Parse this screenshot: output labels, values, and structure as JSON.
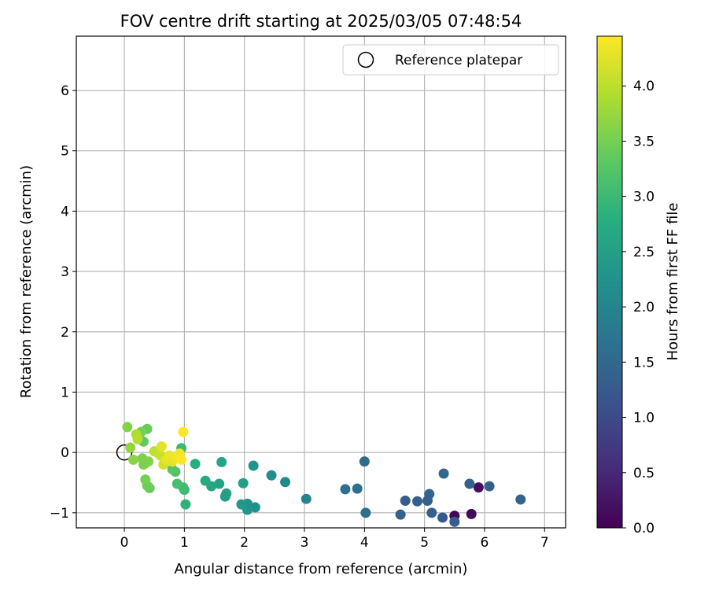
{
  "chart_data": {
    "type": "scatter",
    "title": "FOV centre drift starting at 2025/03/05 07:48:54",
    "xlabel": "Angular distance from reference (arcmin)",
    "ylabel": "Rotation from reference (arcmin)",
    "xlim": [
      -0.8,
      7.35
    ],
    "ylim": [
      -1.25,
      6.9
    ],
    "xticks": [
      0,
      1,
      2,
      3,
      4,
      5,
      6,
      7
    ],
    "yticks": [
      -1,
      0,
      1,
      2,
      3,
      4,
      5,
      6
    ],
    "grid": true,
    "legend": {
      "placement": "top-right",
      "label": "Reference platepar"
    },
    "reference": {
      "x": 0,
      "y": 0
    },
    "colorbar": {
      "label": "Hours from first FF file",
      "colormap": "viridis",
      "range": [
        0,
        4.45
      ],
      "ticks": [
        0.0,
        0.5,
        1.0,
        1.5,
        2.0,
        2.5,
        3.0,
        3.5,
        4.0
      ],
      "tick_labels": [
        "0.0",
        "0.5",
        "1.0",
        "1.5",
        "2.0",
        "2.5",
        "3.0",
        "3.5",
        "4.0"
      ]
    },
    "points": [
      {
        "x": 5.5,
        "y": -1.05,
        "c": 0.05
      },
      {
        "x": 5.78,
        "y": -1.02,
        "c": 0.1
      },
      {
        "x": 5.9,
        "y": -0.58,
        "c": 0.15
      },
      {
        "x": 6.08,
        "y": -0.56,
        "c": 1.35
      },
      {
        "x": 6.6,
        "y": -0.78,
        "c": 1.45
      },
      {
        "x": 5.75,
        "y": -0.52,
        "c": 1.4
      },
      {
        "x": 5.5,
        "y": -1.15,
        "c": 1.3
      },
      {
        "x": 5.3,
        "y": -1.08,
        "c": 1.25
      },
      {
        "x": 5.12,
        "y": -1.0,
        "c": 1.35
      },
      {
        "x": 5.32,
        "y": -0.35,
        "c": 1.5
      },
      {
        "x": 5.08,
        "y": -0.69,
        "c": 1.45
      },
      {
        "x": 5.05,
        "y": -0.8,
        "c": 1.4
      },
      {
        "x": 4.88,
        "y": -0.81,
        "c": 1.35
      },
      {
        "x": 4.68,
        "y": -0.8,
        "c": 1.3
      },
      {
        "x": 4.6,
        "y": -1.03,
        "c": 1.4
      },
      {
        "x": 4.02,
        "y": -1.0,
        "c": 1.6
      },
      {
        "x": 4.0,
        "y": -0.15,
        "c": 1.55
      },
      {
        "x": 3.88,
        "y": -0.6,
        "c": 1.6
      },
      {
        "x": 3.68,
        "y": -0.61,
        "c": 1.65
      },
      {
        "x": 3.03,
        "y": -0.77,
        "c": 2.0
      },
      {
        "x": 2.68,
        "y": -0.49,
        "c": 2.1
      },
      {
        "x": 2.45,
        "y": -0.38,
        "c": 2.15
      },
      {
        "x": 2.15,
        "y": -0.22,
        "c": 2.3
      },
      {
        "x": 2.18,
        "y": -0.91,
        "c": 2.2
      },
      {
        "x": 2.05,
        "y": -0.95,
        "c": 2.3
      },
      {
        "x": 2.05,
        "y": -0.85,
        "c": 2.25
      },
      {
        "x": 1.95,
        "y": -0.86,
        "c": 2.4
      },
      {
        "x": 1.98,
        "y": -0.51,
        "c": 2.5
      },
      {
        "x": 1.68,
        "y": -0.73,
        "c": 2.45
      },
      {
        "x": 1.7,
        "y": -0.68,
        "c": 2.5
      },
      {
        "x": 1.62,
        "y": -0.16,
        "c": 2.6
      },
      {
        "x": 1.58,
        "y": -0.52,
        "c": 2.55
      },
      {
        "x": 1.45,
        "y": -0.56,
        "c": 2.65
      },
      {
        "x": 1.35,
        "y": -0.47,
        "c": 2.7
      },
      {
        "x": 1.18,
        "y": -0.19,
        "c": 2.75
      },
      {
        "x": 1.02,
        "y": -0.86,
        "c": 2.85
      },
      {
        "x": 1.0,
        "y": -0.62,
        "c": 3.0
      },
      {
        "x": 0.98,
        "y": -0.58,
        "c": 3.05
      },
      {
        "x": 0.95,
        "y": 0.07,
        "c": 3.0
      },
      {
        "x": 0.88,
        "y": -0.52,
        "c": 3.1
      },
      {
        "x": 0.85,
        "y": -0.32,
        "c": 3.2
      },
      {
        "x": 0.8,
        "y": -0.28,
        "c": 3.25
      },
      {
        "x": 0.42,
        "y": -0.59,
        "c": 3.4
      },
      {
        "x": 0.38,
        "y": -0.55,
        "c": 3.45
      },
      {
        "x": 0.35,
        "y": -0.45,
        "c": 3.5
      },
      {
        "x": 0.38,
        "y": 0.39,
        "c": 3.4
      },
      {
        "x": 0.32,
        "y": 0.18,
        "c": 3.35
      },
      {
        "x": 0.28,
        "y": 0.34,
        "c": 3.5
      },
      {
        "x": 0.3,
        "y": -0.1,
        "c": 3.55
      },
      {
        "x": 0.35,
        "y": -0.18,
        "c": 3.6
      },
      {
        "x": 0.4,
        "y": -0.15,
        "c": 3.6
      },
      {
        "x": 0.32,
        "y": -0.2,
        "c": 3.55
      },
      {
        "x": 0.05,
        "y": 0.42,
        "c": 3.6
      },
      {
        "x": 0.1,
        "y": 0.08,
        "c": 3.7
      },
      {
        "x": 0.15,
        "y": -0.12,
        "c": 3.65
      },
      {
        "x": 0.2,
        "y": 0.3,
        "c": 3.9
      },
      {
        "x": 0.22,
        "y": 0.22,
        "c": 3.95
      },
      {
        "x": 0.5,
        "y": 0.02,
        "c": 4.0
      },
      {
        "x": 0.55,
        "y": 0.0,
        "c": 4.05
      },
      {
        "x": 0.6,
        "y": -0.05,
        "c": 4.1
      },
      {
        "x": 0.65,
        "y": -0.2,
        "c": 4.15
      },
      {
        "x": 0.62,
        "y": 0.1,
        "c": 4.25
      },
      {
        "x": 0.7,
        "y": -0.12,
        "c": 4.3
      },
      {
        "x": 0.75,
        "y": -0.05,
        "c": 4.35
      },
      {
        "x": 0.8,
        "y": -0.15,
        "c": 4.3
      },
      {
        "x": 0.85,
        "y": -0.1,
        "c": 4.35
      },
      {
        "x": 0.9,
        "y": -0.07,
        "c": 4.4
      },
      {
        "x": 0.92,
        "y": -0.02,
        "c": 4.38
      },
      {
        "x": 0.95,
        "y": -0.12,
        "c": 4.42
      },
      {
        "x": 0.98,
        "y": 0.34,
        "c": 4.45
      }
    ]
  }
}
